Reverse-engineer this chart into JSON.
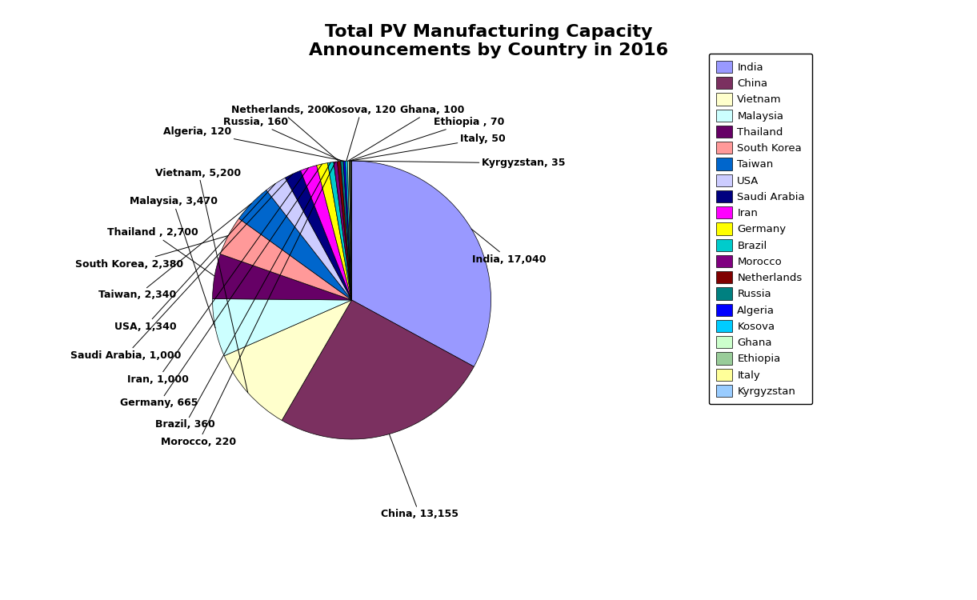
{
  "title": "Total PV Manufacturing Capacity\nAnnouncements by Country in 2016",
  "countries": [
    "India",
    "China",
    "Vietnam",
    "Malaysia",
    "Thailand",
    "South Korea",
    "Taiwan",
    "USA",
    "Saudi Arabia",
    "Iran",
    "Germany",
    "Brazil",
    "Morocco",
    "Netherlands",
    "Russia",
    "Algeria",
    "Kosova",
    "Ghana",
    "Ethiopia",
    "Italy",
    "Kyrgyzstan"
  ],
  "values": [
    17040,
    13155,
    5200,
    3470,
    2700,
    2380,
    2340,
    1340,
    1000,
    1000,
    665,
    360,
    220,
    200,
    160,
    120,
    120,
    100,
    70,
    50,
    35
  ],
  "pie_colors": [
    "#9999FF",
    "#7B3060",
    "#FFFFCC",
    "#CCFFFF",
    "#660066",
    "#FF9999",
    "#0066CC",
    "#CCCCFF",
    "#000080",
    "#FF00FF",
    "#FFFF00",
    "#00CCCC",
    "#800080",
    "#800000",
    "#008080",
    "#0000FF",
    "#00CCFF",
    "#CCFFCC",
    "#99CC99",
    "#FFFF99",
    "#99CCFF"
  ],
  "label_texts": [
    "India, 17,040",
    "China, 13,155",
    "Vietnam, 5,200",
    "Malaysia, 3,470",
    "Thailand , 2,700",
    "South Korea, 2,380",
    "Taiwan, 2,340",
    "USA, 1,340",
    "Saudi Arabia, 1,000",
    "Iran, 1,000",
    "Germany, 665",
    "Brazil, 360",
    "Morocco, 220",
    "Netherlands, 200",
    "Russia, 160",
    "Algeria, 120",
    "Kosova, 120",
    "Ghana, 100",
    "Ethiopia , 70",
    "Italy, 50",
    "Kyrgyzstan, 35"
  ],
  "title_fontsize": 16,
  "label_fontsize": 9
}
